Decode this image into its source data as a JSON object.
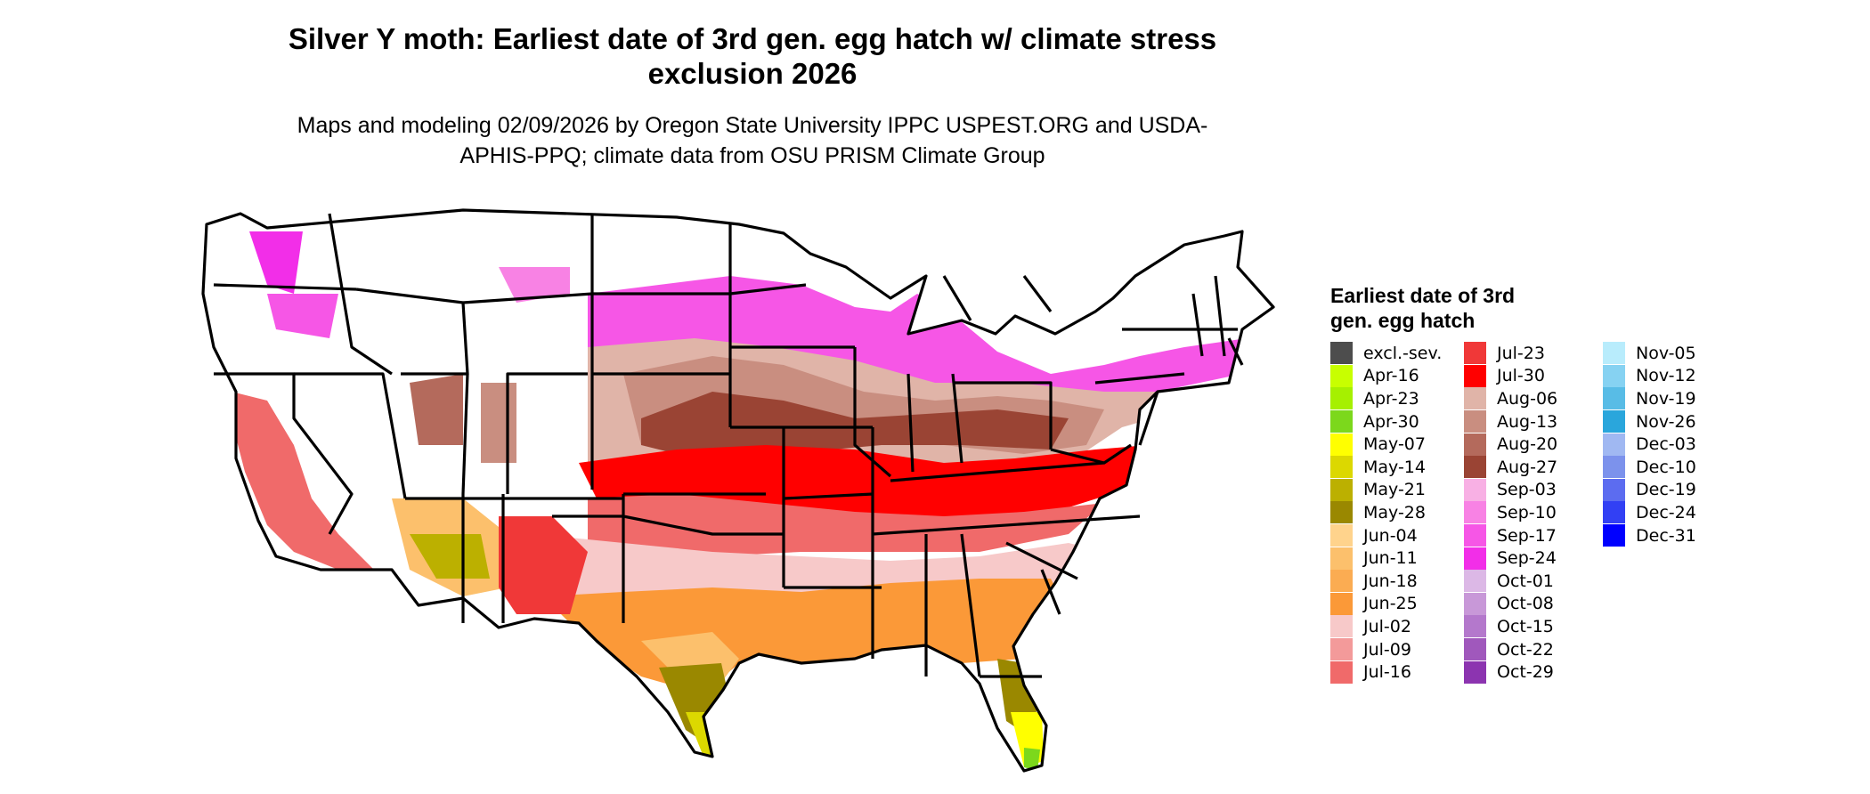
{
  "title": "Silver Y moth: Earliest date of 3rd gen. egg hatch w/ climate stress exclusion 2026",
  "subtitle": "Maps and modeling 02/09/2026 by Oregon State University IPPC USPEST.ORG and USDA-APHIS-PPQ; climate data from OSU PRISM Climate Group",
  "legend": {
    "title": "Earliest date of 3rd gen. egg hatch",
    "columns": [
      [
        {
          "label": "excl.-sev.",
          "color": "#4d4d4d"
        },
        {
          "label": "Apr-16",
          "color": "#c8ff00"
        },
        {
          "label": "Apr-23",
          "color": "#a6f000"
        },
        {
          "label": "Apr-30",
          "color": "#7cd81c"
        },
        {
          "label": "May-07",
          "color": "#ffff00"
        },
        {
          "label": "May-14",
          "color": "#dcd800"
        },
        {
          "label": "May-21",
          "color": "#bcb000"
        },
        {
          "label": "May-28",
          "color": "#9a8800"
        },
        {
          "label": "Jun-04",
          "color": "#ffd38c"
        },
        {
          "label": "Jun-11",
          "color": "#fcc06c"
        },
        {
          "label": "Jun-18",
          "color": "#fbac52"
        },
        {
          "label": "Jun-25",
          "color": "#fb9938"
        },
        {
          "label": "Jul-02",
          "color": "#f7c9c9"
        },
        {
          "label": "Jul-09",
          "color": "#f39a9a"
        },
        {
          "label": "Jul-16",
          "color": "#f06a6a"
        }
      ],
      [
        {
          "label": "Jul-23",
          "color": "#f03838"
        },
        {
          "label": "Jul-30",
          "color": "#ff0000"
        },
        {
          "label": "Aug-06",
          "color": "#e0b4a8"
        },
        {
          "label": "Aug-13",
          "color": "#c98e80"
        },
        {
          "label": "Aug-20",
          "color": "#b46a5c"
        },
        {
          "label": "Aug-27",
          "color": "#9a4434"
        },
        {
          "label": "Sep-03",
          "color": "#f8b0e4"
        },
        {
          "label": "Sep-10",
          "color": "#f882e4"
        },
        {
          "label": "Sep-17",
          "color": "#f656e6"
        },
        {
          "label": "Sep-24",
          "color": "#f22ee8"
        },
        {
          "label": "Oct-01",
          "color": "#dcb8e6"
        },
        {
          "label": "Oct-08",
          "color": "#c898d8"
        },
        {
          "label": "Oct-15",
          "color": "#b478cc"
        },
        {
          "label": "Oct-22",
          "color": "#a058bc"
        },
        {
          "label": "Oct-29",
          "color": "#8c34b0"
        }
      ],
      [
        {
          "label": "Nov-05",
          "color": "#b8ecfc"
        },
        {
          "label": "Nov-12",
          "color": "#86d2f2"
        },
        {
          "label": "Nov-19",
          "color": "#58bce6"
        },
        {
          "label": "Nov-26",
          "color": "#2aa6dc"
        },
        {
          "label": "Dec-03",
          "color": "#a0b8f2"
        },
        {
          "label": "Dec-10",
          "color": "#7c92ec"
        },
        {
          "label": "Dec-19",
          "color": "#5c6cf0"
        },
        {
          "label": "Dec-24",
          "color": "#3240f4"
        },
        {
          "label": "Dec-31",
          "color": "#0000ff"
        }
      ]
    ]
  }
}
